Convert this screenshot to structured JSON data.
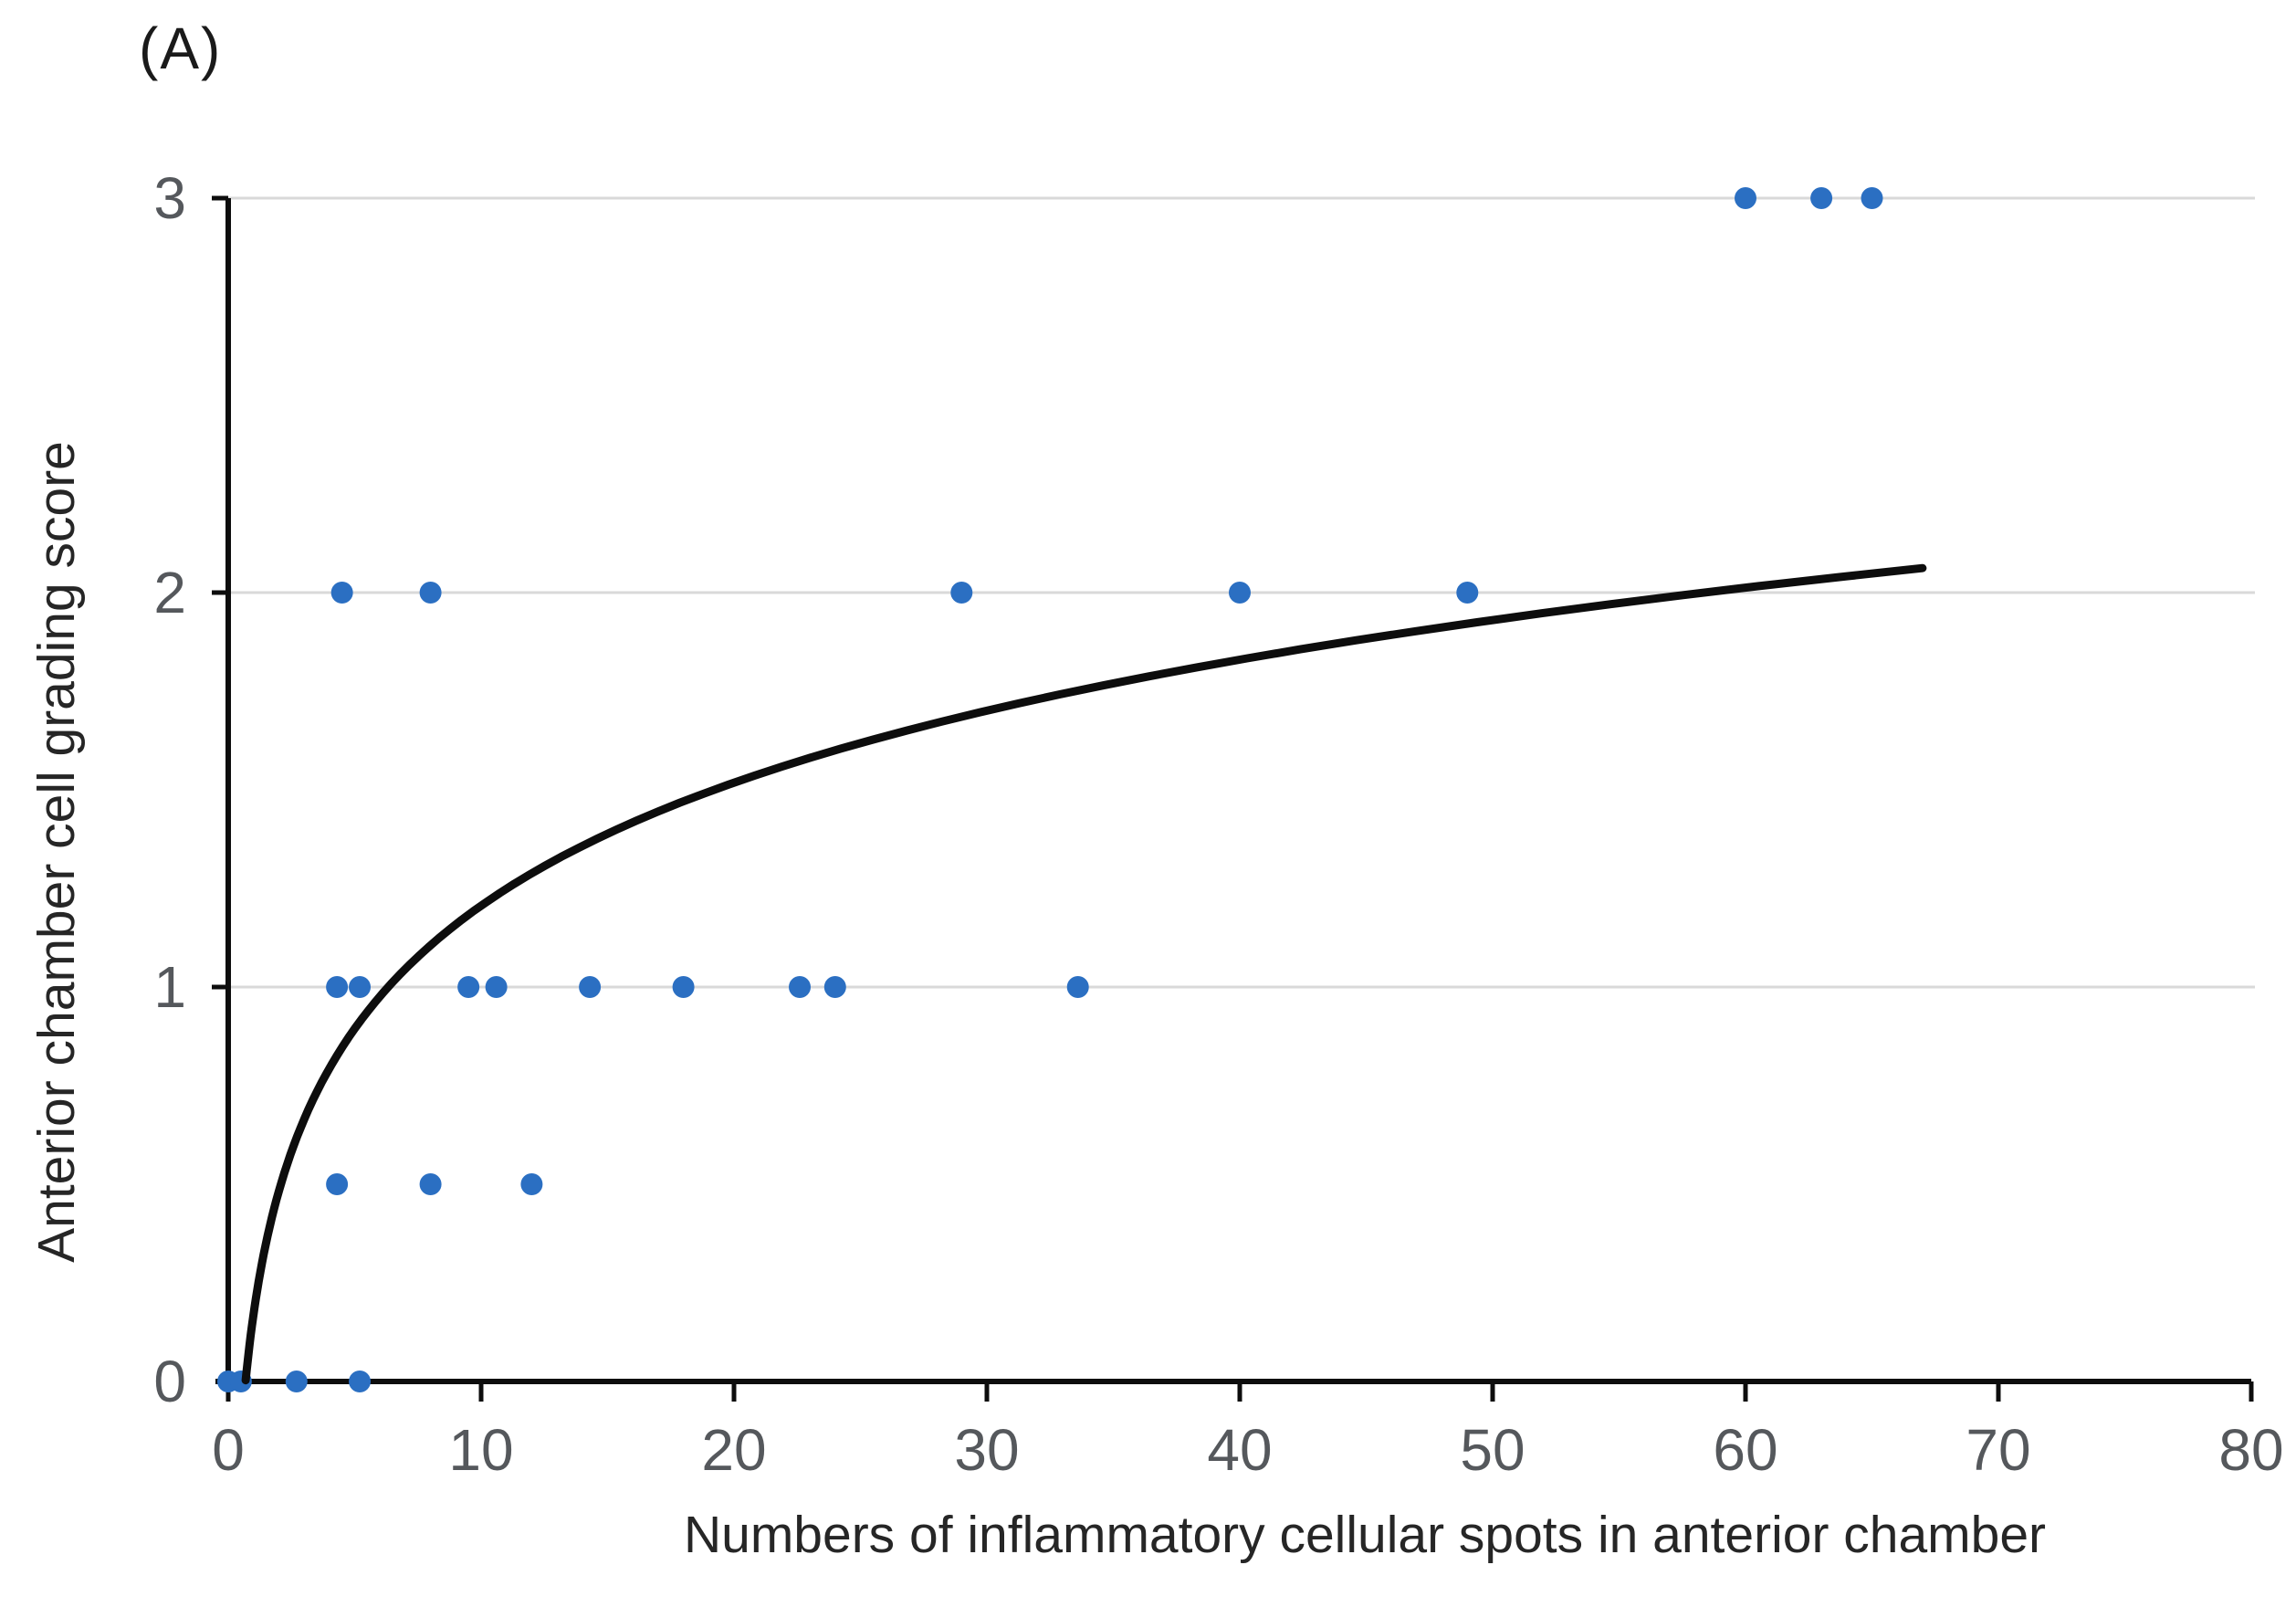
{
  "figure": {
    "panel_label": "(A)"
  },
  "chart_data": {
    "type": "scatter",
    "title": "",
    "xlabel": "Numbers of inflammatory cellular spots in anterior chamber",
    "ylabel": "Anterior chamber cell grading score",
    "xlim": [
      0,
      80
    ],
    "ylim": [
      0,
      3
    ],
    "x_ticks": [
      0,
      10,
      20,
      30,
      40,
      50,
      60,
      70,
      80
    ],
    "y_ticks": [
      0,
      1,
      2,
      3
    ],
    "grid": "horizontal gridlines at y = 1, 2, 3",
    "legend_position": "none",
    "points": [
      {
        "x": 0,
        "y": 0
      },
      {
        "x": 0.5,
        "y": 0
      },
      {
        "x": 2.7,
        "y": 0
      },
      {
        "x": 5.2,
        "y": 0
      },
      {
        "x": 4.3,
        "y": 0.5
      },
      {
        "x": 8,
        "y": 0.5
      },
      {
        "x": 12,
        "y": 0.5
      },
      {
        "x": 4.3,
        "y": 1
      },
      {
        "x": 5.2,
        "y": 1
      },
      {
        "x": 9.5,
        "y": 1
      },
      {
        "x": 10.6,
        "y": 1
      },
      {
        "x": 14.3,
        "y": 1
      },
      {
        "x": 18,
        "y": 1
      },
      {
        "x": 22.6,
        "y": 1
      },
      {
        "x": 24,
        "y": 1
      },
      {
        "x": 33.6,
        "y": 1
      },
      {
        "x": 4.5,
        "y": 2
      },
      {
        "x": 8,
        "y": 2
      },
      {
        "x": 29,
        "y": 2
      },
      {
        "x": 40,
        "y": 2
      },
      {
        "x": 49,
        "y": 2
      },
      {
        "x": 60,
        "y": 3
      },
      {
        "x": 63,
        "y": 3
      },
      {
        "x": 65,
        "y": 3
      }
    ],
    "trendline": {
      "type": "logarithmic",
      "equation": "y = 0.45*ln(x) + 0.17",
      "a": 0.45,
      "b": 0.17,
      "x_start": 0.69,
      "x_end": 67
    },
    "colors": {
      "point": "#2b6fc2",
      "trendline": "#0d0d0d",
      "gridline": "#d9d9d9",
      "axis": "#0d0d0d",
      "tick_label": "#55585c",
      "axis_title": "#262626"
    }
  }
}
